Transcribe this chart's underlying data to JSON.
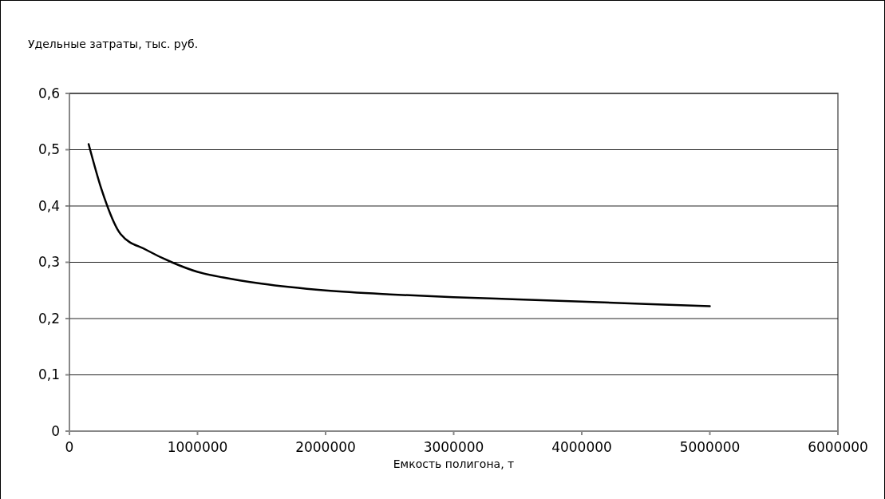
{
  "chart_data": {
    "type": "line",
    "ylabel": "Удельные затраты, тыс. руб.",
    "xlabel": "Емкость полигона, т",
    "x": [
      150000,
      250000,
      400000,
      600000,
      800000,
      1000000,
      1200000,
      1500000,
      2000000,
      2500000,
      3000000,
      3500000,
      4000000,
      4500000,
      5000000
    ],
    "series": [
      {
        "color": "#000000",
        "values": [
          0.51,
          0.43,
          0.35,
          0.322,
          0.3,
          0.283,
          0.273,
          0.262,
          0.25,
          0.243,
          0.238,
          0.234,
          0.23,
          0.226,
          0.222
        ]
      }
    ],
    "xlim": [
      0,
      6000000
    ],
    "xticks": [
      0,
      1000000,
      2000000,
      3000000,
      4000000,
      5000000,
      6000000
    ],
    "ylim": [
      0,
      0.6
    ],
    "yticks": [
      0,
      {
        "value": 0.1,
        "label": "0,1"
      },
      {
        "value": 0.2,
        "label": "0,2"
      },
      {
        "value": 0.3,
        "label": "0,3"
      },
      {
        "value": 0.4,
        "label": "0,4"
      },
      {
        "value": 0.5,
        "label": "0,5"
      },
      {
        "value": 0.6,
        "label": "0,6"
      }
    ],
    "grid": "y",
    "marker": "none",
    "line_style": "solid"
  }
}
